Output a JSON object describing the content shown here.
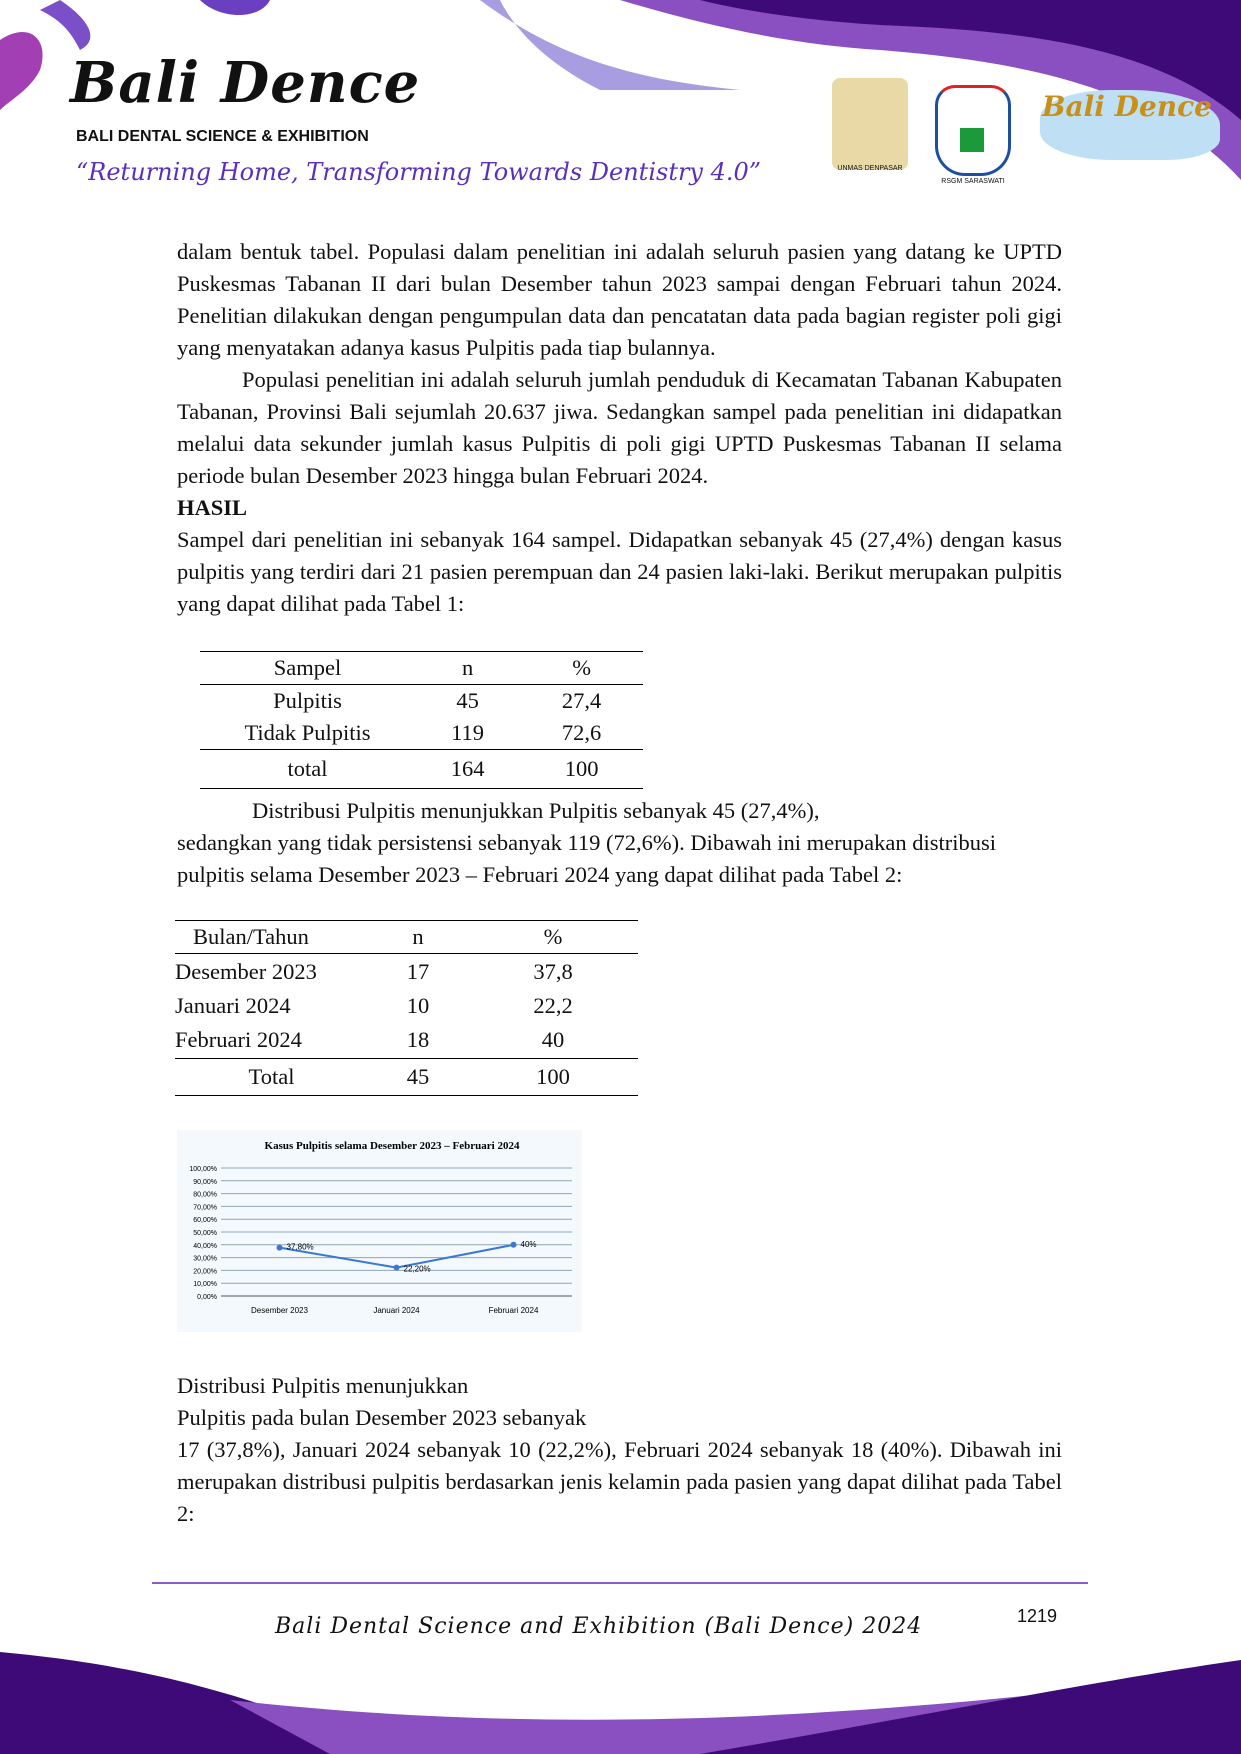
{
  "header": {
    "logo_text": "Bali Dence",
    "subtitle": "BALI DENTAL SCIENCE & EXHIBITION",
    "tagline": "“Returning Home, Transforming Towards Dentistry 4.0”",
    "partner_logos": [
      "UNMAS DENPASAR",
      "RSGM SARASWATI",
      "Bali Dence"
    ]
  },
  "body": {
    "p1": "dalam bentuk tabel. Populasi dalam penelitian ini adalah seluruh pasien yang datang ke UPTD Puskesmas Tabanan II dari bulan Desember tahun 2023 sampai dengan Februari tahun 2024. Penelitian dilakukan dengan pengumpulan data dan pencatatan data pada bagian register poli gigi yang menyatakan adanya kasus  Pulpitis pada tiap bulannya.",
    "p2": "Populasi penelitian ini adalah seluruh jumlah penduduk di Kecamatan Tabanan Kabupaten Tabanan, Provinsi Bali sejumlah 20.637 jiwa. Sedangkan sampel pada penelitian ini didapatkan melalui data sekunder jumlah kasus Pulpitis di poli gigi UPTD Puskesmas Tabanan II selama periode bulan Desember 2023 hingga bulan Februari 2024.",
    "heading": "HASIL",
    "p3": "Sampel dari penelitian ini sebanyak 164 sampel. Didapatkan sebanyak 45 (27,4%) dengan kasus pulpitis yang terdiri dari 21 pasien perempuan dan 24 pasien laki-laki. Berikut merupakan pulpitis yang dapat dilihat pada Tabel 1:",
    "p4a": "Distribusi        Pulpitis          menunjukkan Pulpitis sebanyak 45 (27,4%),",
    "p4b": "sedangkan yang tidak persistensi sebanyak  119       (72,6%). Dibawah ini  merupakan distribusi pulpitis selama Desember 2023 – Februari 2024 yang dapat dilihat pada Tabel 2:",
    "p5a": "Distribusi Pulpitis menunjukkan",
    "p5b": "Pulpitis pada bulan Desember 2023 sebanyak",
    "p5c": "17 (37,8%), Januari 2024 sebanyak 10 (22,2%), Februari 2024 sebanyak 18 (40%). Dibawah ini merupakan distribusi pulpitis berdasarkan jenis kelamin pada pasien yang dapat dilihat pada Tabel 2:"
  },
  "table1": {
    "headers": [
      "Sampel",
      "n",
      "%"
    ],
    "rows": [
      [
        "Pulpitis",
        "45",
        "27,4"
      ],
      [
        "Tidak Pulpitis",
        "119",
        "72,6"
      ]
    ],
    "total": [
      "total",
      "164",
      "100"
    ]
  },
  "table2": {
    "headers": [
      "Bulan/Tahun",
      "n",
      "%"
    ],
    "rows": [
      [
        "Desember 2023",
        "17",
        "37,8"
      ],
      [
        "Januari 2024",
        "10",
        "22,2"
      ],
      [
        "Februari 2024",
        "18",
        "40"
      ]
    ],
    "total": [
      "Total",
      "45",
      "100"
    ]
  },
  "chart_data": {
    "type": "line",
    "title": "Kasus Pulpitis selama Desember 2023 – Februari 2024",
    "categories": [
      "Desember 2023",
      "Januari 2024",
      "Februari 2024"
    ],
    "values": [
      37.8,
      22.2,
      40
    ],
    "data_labels": [
      "37,80%",
      "22,20%",
      "40%"
    ],
    "ylim": [
      0,
      100
    ],
    "yticks": [
      "0,00%",
      "10,00%",
      "20,00%",
      "30,00%",
      "40,00%",
      "50,00%",
      "60,00%",
      "70,00%",
      "80,00%",
      "90,00%",
      "100,00%"
    ],
    "grid": true,
    "color": "#3a78d4"
  },
  "footer": {
    "text": "Bali Dental Science and Exhibition (Bali Dence) 2024",
    "page_number": "1219"
  }
}
